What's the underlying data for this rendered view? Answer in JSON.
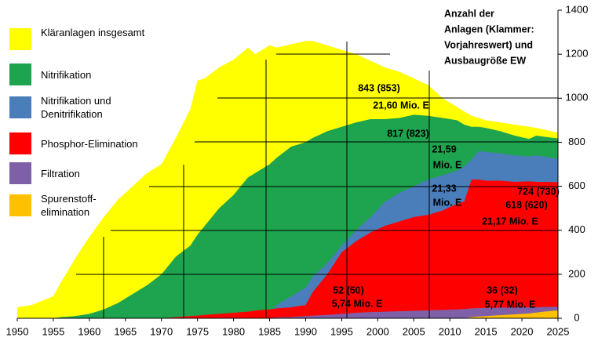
{
  "chart_data": {
    "type": "area",
    "title_lines": [
      "Anzahl der",
      "Anlagen (Klammer:",
      "Vorjahreswert) und",
      "Ausbaugröße EW"
    ],
    "x": [
      1950,
      1952,
      1955,
      1956,
      1958,
      1960,
      1962,
      1964,
      1966,
      1968,
      1970,
      1972,
      1974,
      1975,
      1976,
      1978,
      1980,
      1982,
      1983,
      1985,
      1986,
      1988,
      1990,
      1991,
      1993,
      1995,
      1997,
      1999,
      2001,
      2003,
      2005,
      2007,
      2009,
      2011,
      2012,
      2013,
      2014,
      2015,
      2017,
      2019,
      2021,
      2022,
      2023,
      2025
    ],
    "xlim": [
      1950,
      2025
    ],
    "xticks": [
      1950,
      1955,
      1960,
      1965,
      1970,
      1975,
      1980,
      1985,
      1990,
      1995,
      2000,
      2005,
      2010,
      2015,
      2020,
      2025
    ],
    "ylim": [
      0,
      1400
    ],
    "yticks": [
      0,
      200,
      400,
      600,
      800,
      1000,
      1200,
      1400
    ],
    "y_axis_side": "right",
    "series": [
      {
        "name": "Kläranlagen insgesamt",
        "color": "#ffff00",
        "values": [
          50,
          60,
          100,
          160,
          270,
          370,
          460,
          540,
          600,
          660,
          700,
          820,
          950,
          1080,
          1090,
          1140,
          1175,
          1230,
          1200,
          1240,
          1230,
          1245,
          1260,
          1260,
          1240,
          1220,
          1200,
          1170,
          1140,
          1120,
          1090,
          1060,
          1000,
          960,
          940,
          920,
          910,
          900,
          890,
          880,
          870,
          865,
          858,
          843
        ]
      },
      {
        "name": "Nitrifikation",
        "color": "#1ea34e",
        "values": [
          0,
          0,
          0,
          5,
          10,
          20,
          40,
          70,
          110,
          150,
          200,
          280,
          330,
          380,
          420,
          500,
          560,
          640,
          660,
          700,
          730,
          780,
          800,
          820,
          850,
          870,
          890,
          905,
          905,
          910,
          925,
          920,
          910,
          900,
          880,
          870,
          870,
          865,
          850,
          830,
          815,
          830,
          825,
          817
        ]
      },
      {
        "name": "Nitrifikation und Denitrifikation",
        "color": "#4a7ebb",
        "values": [
          0,
          0,
          0,
          0,
          0,
          0,
          0,
          0,
          0,
          0,
          0,
          0,
          0,
          0,
          0,
          0,
          0,
          0,
          0,
          20,
          60,
          100,
          140,
          190,
          250,
          330,
          400,
          460,
          530,
          570,
          600,
          630,
          650,
          670,
          690,
          720,
          760,
          755,
          750,
          740,
          735,
          740,
          735,
          724
        ]
      },
      {
        "name": "Phosphor-Elimination",
        "color": "#ff0000",
        "values": [
          0,
          0,
          0,
          0,
          0,
          0,
          0,
          0,
          0,
          0,
          0,
          5,
          10,
          12,
          15,
          20,
          25,
          30,
          35,
          40,
          45,
          50,
          60,
          120,
          200,
          300,
          350,
          390,
          420,
          440,
          460,
          470,
          490,
          520,
          530,
          630,
          630,
          625,
          625,
          620,
          622,
          620,
          620,
          618
        ]
      },
      {
        "name": "Filtration",
        "color": "#7f60a8",
        "values": [
          0,
          0,
          0,
          0,
          0,
          0,
          0,
          0,
          0,
          0,
          0,
          0,
          0,
          0,
          0,
          0,
          0,
          0,
          0,
          2,
          4,
          6,
          10,
          12,
          15,
          20,
          25,
          28,
          30,
          32,
          34,
          36,
          38,
          40,
          42,
          45,
          46,
          47,
          48,
          49,
          50,
          50,
          51,
          52
        ]
      },
      {
        "name": "Spurenstoff-elimination",
        "color": "#ffc000",
        "values": [
          0,
          0,
          0,
          0,
          0,
          0,
          0,
          0,
          0,
          0,
          0,
          0,
          0,
          0,
          0,
          0,
          0,
          0,
          0,
          0,
          0,
          0,
          0,
          0,
          0,
          0,
          0,
          0,
          0,
          0,
          0,
          0,
          0,
          0,
          1,
          5,
          8,
          10,
          14,
          18,
          22,
          26,
          30,
          36
        ]
      }
    ],
    "annotations": [
      "843 (853)",
      "21,60 Mio. E",
      "817 (823)",
      "21,59",
      "Mio. E",
      "724 (730)",
      "21,33",
      "Mio. E",
      "618 (620)",
      "21,17 Mio. E",
      "52 (50)",
      "5,74 Mio. E",
      "36 (32)",
      "5,77 Mio. E"
    ]
  }
}
